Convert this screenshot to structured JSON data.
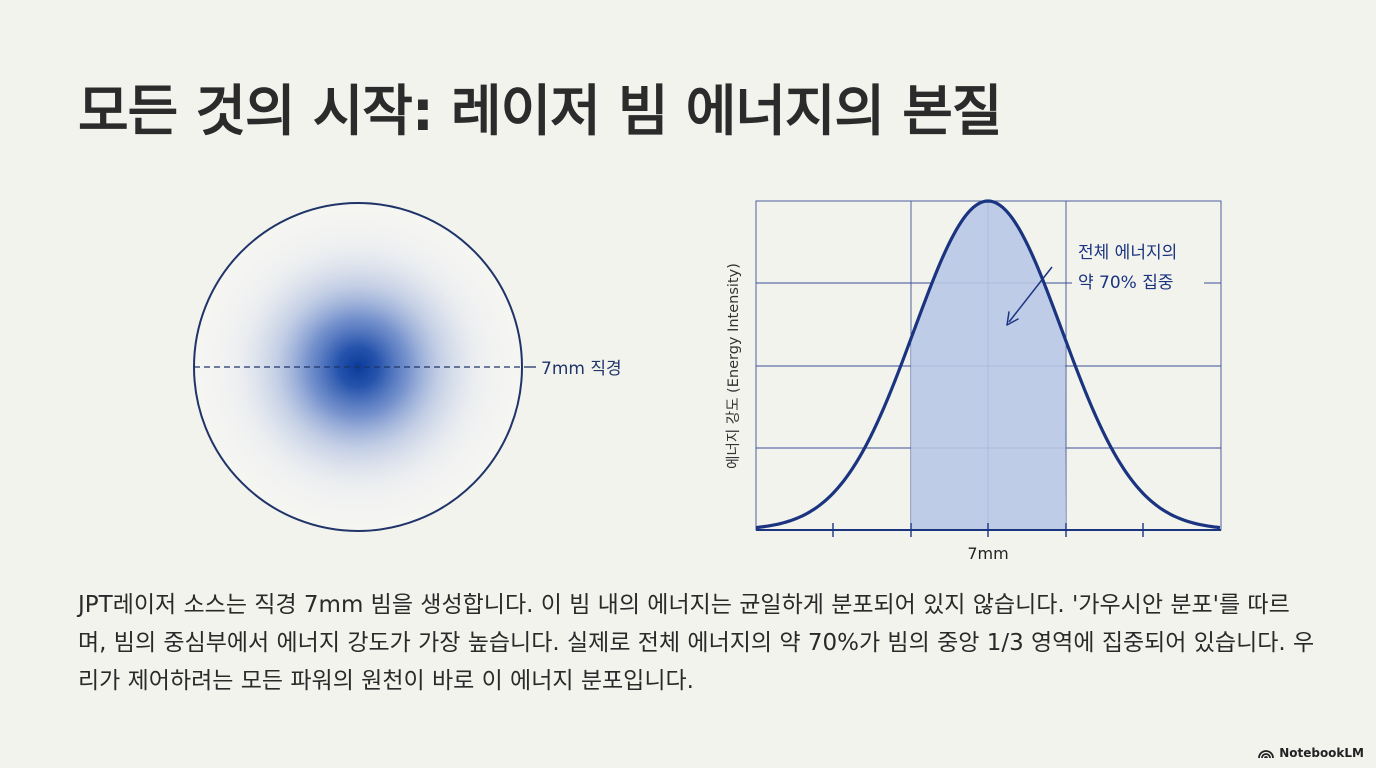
{
  "title": "모든 것의 시작: 레이저 빔 에너지의 본질",
  "beam": {
    "diameter_label": "7mm 직경",
    "core_color": "#0a3a9a",
    "outline_color": "#1f3468"
  },
  "chart_data": {
    "type": "area",
    "ylabel": "에너지 강도 (Energy Intensity)",
    "xlabel": "7mm",
    "distribution": "gaussian",
    "shaded_region": "middle third",
    "annotation": {
      "line1": "전체 에너지의",
      "line2": "약 70% 집중"
    },
    "grid": true,
    "line_color": "#1a3480",
    "fill_color": "#b9c8e6"
  },
  "body": "JPT레이저 소스는 직경 7mm 빔을 생성합니다. 이 빔 내의 에너지는 균일하게 분포되어 있지 않습니다. '가우시안 분포'를 따르며, 빔의 중심부에서 에너지 강도가 가장 높습니다. 실제로 전체 에너지의 약 70%가 빔의 중앙 1/3 영역에 집중되어 있습니다. 우리가 제어하려는 모든 파워의 원천이 바로 이 에너지 분포입니다.",
  "brand": {
    "label": "NotebookLM",
    "icon": "notebooklm-logo-icon"
  }
}
